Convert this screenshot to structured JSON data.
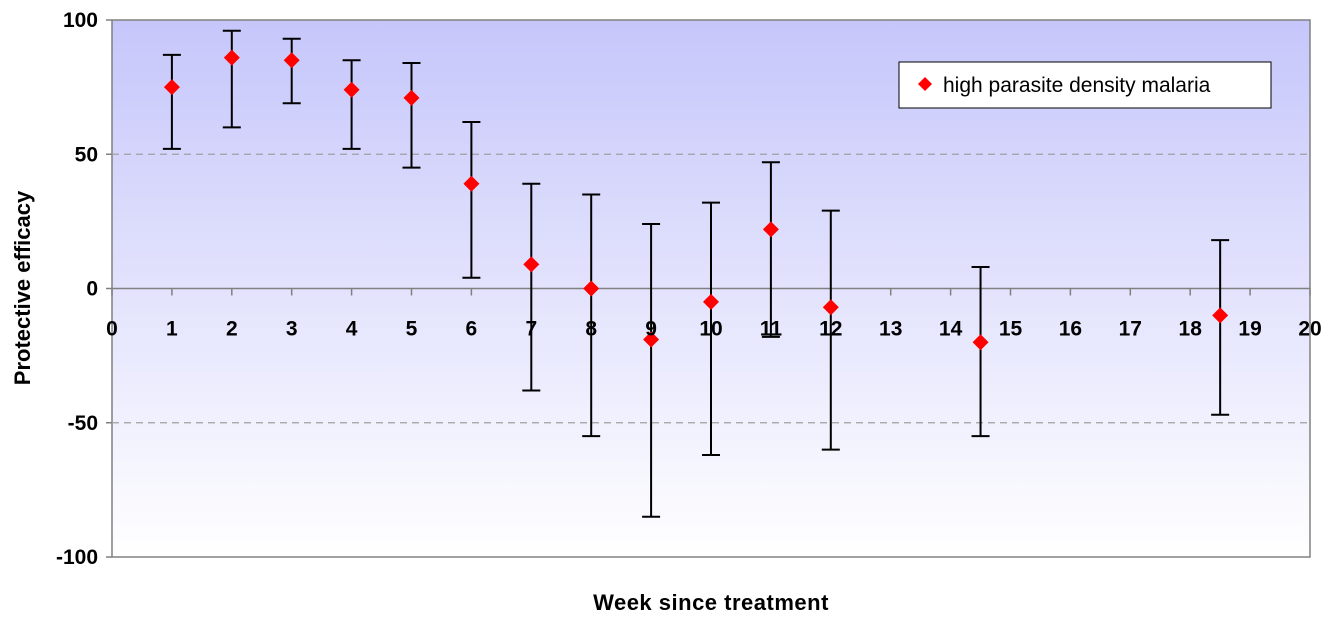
{
  "chart_data": {
    "type": "scatter",
    "title": "",
    "xlabel": "Week since treatment",
    "ylabel": "Protective efficacy",
    "xlim": [
      0,
      20
    ],
    "ylim": [
      -100,
      100
    ],
    "x_ticks": [
      "0",
      "1",
      "2",
      "3",
      "4",
      "5",
      "6",
      "7",
      "8",
      "9",
      "10",
      "11",
      "12",
      "13",
      "14",
      "15",
      "16",
      "17",
      "18",
      "19",
      "20"
    ],
    "y_ticks": [
      "100",
      "50",
      "0",
      "-50",
      "-100"
    ],
    "grid": "dashed horizontal at 50 and -50",
    "legend": {
      "position": "top-right",
      "marker": "red-diamond"
    },
    "colors": {
      "marker": "#ff0000",
      "plot_top": "#c6c6fb",
      "plot_bottom": "#ffffff",
      "error_bar": "#000000"
    },
    "series": [
      {
        "name": "high parasite density malaria",
        "points": [
          {
            "x": 1,
            "y": 75,
            "lower": 52,
            "upper": 87
          },
          {
            "x": 2,
            "y": 86,
            "lower": 60,
            "upper": 96
          },
          {
            "x": 3,
            "y": 85,
            "lower": 69,
            "upper": 93
          },
          {
            "x": 4,
            "y": 74,
            "lower": 52,
            "upper": 85
          },
          {
            "x": 5,
            "y": 71,
            "lower": 45,
            "upper": 84
          },
          {
            "x": 6,
            "y": 39,
            "lower": 4,
            "upper": 62
          },
          {
            "x": 7,
            "y": 9,
            "lower": -38,
            "upper": 39
          },
          {
            "x": 8,
            "y": 0,
            "lower": -55,
            "upper": 35
          },
          {
            "x": 9,
            "y": -19,
            "lower": -85,
            "upper": 24
          },
          {
            "x": 10,
            "y": -5,
            "lower": -62,
            "upper": 32
          },
          {
            "x": 11,
            "y": 22,
            "lower": -18,
            "upper": 47
          },
          {
            "x": 12,
            "y": -7,
            "lower": -60,
            "upper": 29
          },
          {
            "x": 14.5,
            "y": -20,
            "lower": -55,
            "upper": 8
          },
          {
            "x": 18.5,
            "y": -10,
            "lower": -47,
            "upper": 18
          }
        ]
      }
    ]
  }
}
